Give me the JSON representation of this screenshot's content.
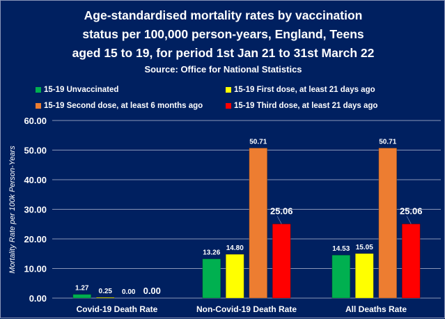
{
  "chart_data": {
    "type": "bar",
    "title": "Age-standardised mortality rates by vaccination status per 100,000 person-years, England, Teens aged 15 to 19, for period 1st Jan 21 to 31st March 22",
    "title_lines": [
      "Age-standardised mortality rates by vaccination",
      "status per 100,000 person-years, England, Teens",
      "aged 15 to 19, for period 1st Jan 21 to 31st March 22"
    ],
    "subtitle": "Source: Office for National Statistics",
    "ylabel": "Mortality Rate per 100k Person-Years",
    "xlabel": "",
    "ylim": [
      0,
      60
    ],
    "yticks": [
      "0.00",
      "10.00",
      "20.00",
      "30.00",
      "40.00",
      "50.00",
      "60.00"
    ],
    "grid": true,
    "legend_placement": "top",
    "categories": [
      "Covid-19 Death Rate",
      "Non-Covid-19 Death Rate",
      "All Deaths Rate"
    ],
    "series": [
      {
        "name": "15-19 Unvaccinated",
        "color": "#00b050",
        "values": [
          1.27,
          13.26,
          14.53
        ],
        "labels": [
          "1.27",
          "13.26",
          "14.53"
        ]
      },
      {
        "name": "15-19 First dose, at least 21 days ago",
        "color": "#ffff00",
        "values": [
          0.25,
          14.8,
          15.05
        ],
        "labels": [
          "0.25",
          "14.80",
          "15.05"
        ]
      },
      {
        "name": "15-19 Second dose, at least 6 months ago",
        "color": "#ed7d31",
        "values": [
          0.0,
          50.71,
          50.71
        ],
        "labels": [
          "0.00",
          "50.71",
          "50.71"
        ]
      },
      {
        "name": "15-19 Third dose, at least 21 days ago",
        "color": "#ff0000",
        "values": [
          0.0,
          25.06,
          25.06
        ],
        "labels": [
          "0.00",
          "25.06",
          "25.06"
        ]
      }
    ],
    "colors": {
      "background": "#002060",
      "grid": "#8a96b8",
      "text": "#ffffff"
    }
  }
}
